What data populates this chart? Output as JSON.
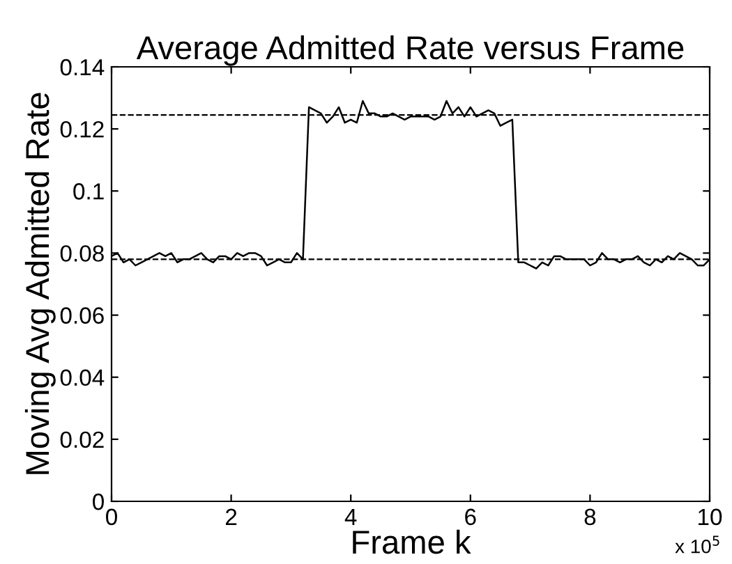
{
  "chart_data": {
    "type": "line",
    "title": "Average Admitted Rate versus Frame",
    "xlabel": "Frame k",
    "ylabel": "Moving Avg Admitted Rate",
    "annotations": [
      "x 10$^{5}$"
    ],
    "x": [
      0,
      0.1,
      0.2,
      0.3,
      0.4,
      0.5,
      0.6,
      0.7,
      0.8,
      0.9,
      1.0,
      1.1,
      1.2,
      1.3,
      1.4,
      1.5,
      1.6,
      1.7,
      1.8,
      1.9,
      2.0,
      2.1,
      2.2,
      2.3,
      2.4,
      2.5,
      2.6,
      2.7,
      2.8,
      2.9,
      3.0,
      3.1,
      3.2,
      3.3,
      3.4,
      3.5,
      3.6,
      3.7,
      3.8,
      3.9,
      4.0,
      4.1,
      4.2,
      4.3,
      4.4,
      4.5,
      4.6,
      4.7,
      4.8,
      4.9,
      5.0,
      5.1,
      5.2,
      5.3,
      5.4,
      5.5,
      5.6,
      5.7,
      5.8,
      5.9,
      6.0,
      6.1,
      6.2,
      6.3,
      6.4,
      6.5,
      6.6,
      6.7,
      6.8,
      6.9,
      7.0,
      7.1,
      7.2,
      7.3,
      7.4,
      7.5,
      7.6,
      7.7,
      7.8,
      7.9,
      8.0,
      8.1,
      8.2,
      8.3,
      8.4,
      8.5,
      8.6,
      8.7,
      8.8,
      8.9,
      9.0,
      9.1,
      9.2,
      9.3,
      9.4,
      9.5,
      9.6,
      9.7,
      9.8,
      9.9,
      10.0
    ],
    "series": [
      {
        "color": "#000000",
        "values": [
          0.079,
          0.08,
          0.077,
          0.078,
          0.076,
          0.077,
          0.078,
          0.079,
          0.08,
          0.079,
          0.08,
          0.077,
          0.078,
          0.078,
          0.079,
          0.08,
          0.078,
          0.077,
          0.079,
          0.079,
          0.078,
          0.08,
          0.079,
          0.08,
          0.08,
          0.079,
          0.076,
          0.077,
          0.078,
          0.077,
          0.077,
          0.08,
          0.078,
          0.127,
          0.126,
          0.125,
          0.122,
          0.124,
          0.127,
          0.122,
          0.123,
          0.122,
          0.129,
          0.125,
          0.125,
          0.124,
          0.124,
          0.125,
          0.124,
          0.123,
          0.124,
          0.124,
          0.124,
          0.124,
          0.123,
          0.124,
          0.129,
          0.125,
          0.127,
          0.124,
          0.127,
          0.124,
          0.125,
          0.126,
          0.125,
          0.121,
          0.122,
          0.123,
          0.077,
          0.077,
          0.076,
          0.075,
          0.077,
          0.076,
          0.079,
          0.079,
          0.078,
          0.078,
          0.078,
          0.078,
          0.076,
          0.077,
          0.08,
          0.078,
          0.078,
          0.077,
          0.078,
          0.078,
          0.079,
          0.077,
          0.076,
          0.078,
          0.077,
          0.079,
          0.078,
          0.08,
          0.079,
          0.078,
          0.076,
          0.076,
          0.078
        ]
      }
    ],
    "ref_lines": [
      {
        "axis": "y",
        "value": 0.1245,
        "color": "#000000",
        "line_style": "dashed"
      },
      {
        "axis": "y",
        "value": 0.078,
        "color": "#000000",
        "line_style": "dashed"
      }
    ],
    "xlim": [
      0,
      10
    ],
    "ylim": [
      0,
      0.14
    ],
    "xticks": [
      0,
      2,
      4,
      6,
      8,
      10
    ],
    "yticks": [
      0,
      0.02,
      0.04,
      0.06,
      0.08,
      0.1,
      0.12,
      0.14
    ],
    "grid": false,
    "legend": false,
    "marker": "none",
    "line_style": "solid"
  }
}
